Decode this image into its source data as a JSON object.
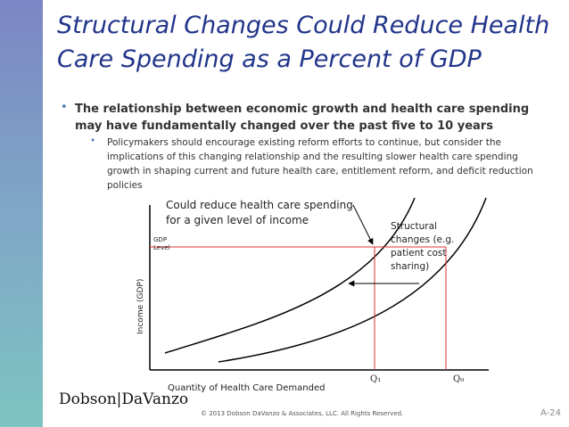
{
  "header": {
    "title": "Structural Changes Could Reduce Health Care Spending as a Percent of GDP"
  },
  "bullets": [
    {
      "text": "The relationship between economic growth and health care spending may have fundamentally changed over the past five to 10 years",
      "subbullets": [
        "Policymakers should encourage existing reform efforts to continue, but consider the implications of this changing relationship and the resulting slower health care spending growth in shaping current and future health care, entitlement reform, and deficit reduction policies"
      ]
    }
  ],
  "diagram": {
    "annotation": "Could reduce health care spending for a given level of income",
    "structural_note": "Structural changes (e.g. patient cost sharing)",
    "gdp_level": "GDP Level",
    "y_axis": "Income (GDP)",
    "x_axis": "Quantity of Health Care Demanded",
    "q1": "Q₁",
    "q0": "Q₀"
  },
  "footer": {
    "logo": "Dobson|DaVanzo",
    "copyright": "© 2013 Dobson DaVanzo & Associates, LLC. All Rights Reserved.",
    "page": "A-24"
  }
}
